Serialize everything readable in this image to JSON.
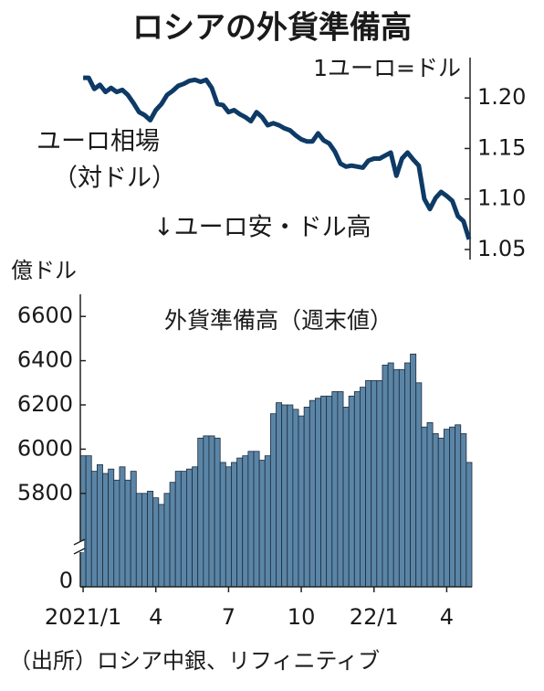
{
  "title": "ロシアの外貨準備高",
  "source": "（出所）ロシア中銀、リフィニティブ",
  "chart_data": [
    {
      "type": "line",
      "unit_label": "1ユーロ=ドル",
      "annotations": [
        "ユーロ相場",
        "（対ドル）",
        "↓ユーロ安・ドル高"
      ],
      "y_axis_side": "right",
      "ylim": [
        1.04,
        1.24
      ],
      "yticks": [
        {
          "value": 1.05,
          "label": "1.05"
        },
        {
          "value": 1.1,
          "label": "1.10"
        },
        {
          "value": 1.15,
          "label": "1.15"
        },
        {
          "value": 1.2,
          "label": "1.20"
        }
      ],
      "series": [
        {
          "color": "#0e3a66",
          "values": [
            1.22,
            1.22,
            1.209,
            1.213,
            1.206,
            1.21,
            1.206,
            1.208,
            1.203,
            1.195,
            1.186,
            1.183,
            1.178,
            1.188,
            1.194,
            1.203,
            1.207,
            1.212,
            1.214,
            1.217,
            1.218,
            1.216,
            1.218,
            1.21,
            1.194,
            1.193,
            1.186,
            1.188,
            1.184,
            1.181,
            1.177,
            1.186,
            1.181,
            1.173,
            1.175,
            1.173,
            1.17,
            1.168,
            1.163,
            1.159,
            1.157,
            1.157,
            1.165,
            1.158,
            1.155,
            1.147,
            1.135,
            1.132,
            1.133,
            1.132,
            1.131,
            1.138,
            1.14,
            1.14,
            1.143,
            1.146,
            1.123,
            1.14,
            1.146,
            1.139,
            1.133,
            1.1,
            1.09,
            1.101,
            1.107,
            1.103,
            1.098,
            1.083,
            1.078,
            1.06
          ]
        }
      ]
    },
    {
      "type": "bar",
      "title": "外貨準備高（週末値）",
      "y_label": "億ドル",
      "broken_axis": true,
      "ylim": [
        0,
        6700
      ],
      "yticks": [
        0,
        5800,
        6000,
        6200,
        6400,
        6600
      ],
      "color": "#5b85a6",
      "edge_color": "#1c2c3c",
      "categories": [
        "2021/1",
        null,
        null,
        null,
        null,
        null,
        null,
        null,
        null,
        null,
        null,
        null,
        null,
        "4",
        null,
        null,
        null,
        null,
        null,
        null,
        null,
        null,
        null,
        null,
        null,
        null,
        "7",
        null,
        null,
        null,
        null,
        null,
        null,
        null,
        null,
        null,
        null,
        null,
        null,
        "10",
        null,
        null,
        null,
        null,
        null,
        null,
        null,
        null,
        null,
        null,
        null,
        null,
        "22/1",
        null,
        null,
        null,
        null,
        null,
        null,
        null,
        null,
        null,
        null,
        null,
        null,
        "4",
        null,
        null,
        null,
        null
      ],
      "values": [
        5970,
        5970,
        5900,
        5930,
        5890,
        5910,
        5860,
        5920,
        5860,
        5900,
        5800,
        5800,
        5810,
        5780,
        5750,
        5800,
        5850,
        5900,
        5900,
        5910,
        5920,
        6050,
        6060,
        6060,
        6050,
        5940,
        5920,
        5940,
        5960,
        5970,
        5990,
        5990,
        5950,
        5970,
        6160,
        6210,
        6200,
        6200,
        6180,
        6150,
        6190,
        6220,
        6230,
        6240,
        6240,
        6260,
        6260,
        6190,
        6240,
        6260,
        6280,
        6310,
        6310,
        6310,
        6380,
        6390,
        6360,
        6360,
        6390,
        6430,
        6300,
        6100,
        6120,
        6070,
        6050,
        6090,
        6100,
        6110,
        6070,
        5940
      ]
    }
  ]
}
